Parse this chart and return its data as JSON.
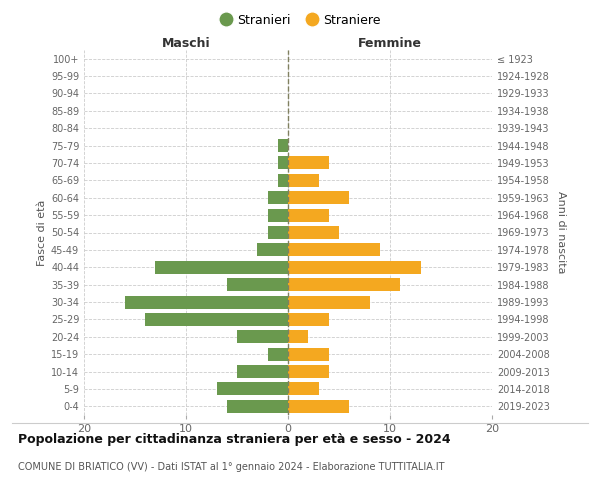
{
  "age_groups": [
    "0-4",
    "5-9",
    "10-14",
    "15-19",
    "20-24",
    "25-29",
    "30-34",
    "35-39",
    "40-44",
    "45-49",
    "50-54",
    "55-59",
    "60-64",
    "65-69",
    "70-74",
    "75-79",
    "80-84",
    "85-89",
    "90-94",
    "95-99",
    "100+"
  ],
  "birth_years": [
    "2019-2023",
    "2014-2018",
    "2009-2013",
    "2004-2008",
    "1999-2003",
    "1994-1998",
    "1989-1993",
    "1984-1988",
    "1979-1983",
    "1974-1978",
    "1969-1973",
    "1964-1968",
    "1959-1963",
    "1954-1958",
    "1949-1953",
    "1944-1948",
    "1939-1943",
    "1934-1938",
    "1929-1933",
    "1924-1928",
    "≤ 1923"
  ],
  "males": [
    6,
    7,
    5,
    2,
    5,
    14,
    16,
    6,
    13,
    3,
    2,
    2,
    2,
    1,
    1,
    1,
    0,
    0,
    0,
    0,
    0
  ],
  "females": [
    6,
    3,
    4,
    4,
    2,
    4,
    8,
    11,
    13,
    9,
    5,
    4,
    6,
    3,
    4,
    0,
    0,
    0,
    0,
    0,
    0
  ],
  "male_color": "#6a994e",
  "female_color": "#f4a820",
  "grid_color": "#cccccc",
  "center_line_color": "#808060",
  "title": "Popolazione per cittadinanza straniera per età e sesso - 2024",
  "subtitle": "COMUNE DI BRIATICO (VV) - Dati ISTAT al 1° gennaio 2024 - Elaborazione TUTTITALIA.IT",
  "xlabel_left": "Maschi",
  "xlabel_right": "Femmine",
  "ylabel_left": "Fasce di età",
  "ylabel_right": "Anni di nascita",
  "legend_stranieri": "Stranieri",
  "legend_straniere": "Straniere",
  "xlim": 20,
  "background_color": "#ffffff"
}
